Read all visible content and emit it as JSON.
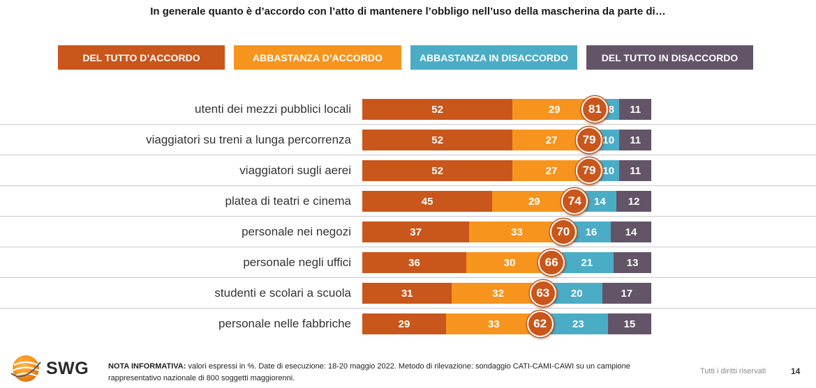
{
  "colors": {
    "del_tutto_accordo": "#c9561b",
    "abbastanza_accordo": "#f7941e",
    "abbastanza_disaccordo": "#4bacc6",
    "del_tutto_disaccordo": "#635468",
    "badge": "#c9561b"
  },
  "chart_data": {
    "type": "bar",
    "orientation": "horizontal-stacked-100",
    "title": "In generale quanto è d’accordo con l’atto di mantenere l’obbligo nell’uso della mascherina da parte di…",
    "legend_position": "top",
    "grid": false,
    "xlim": [
      0,
      100
    ],
    "categories": [
      "utenti dei mezzi pubblici locali",
      "viaggiatori su treni a lunga percorrenza",
      "viaggiatori sugli aerei",
      "platea di teatri e cinema",
      "personale nei negozi",
      "personale negli uffici",
      "studenti e scolari a scuola",
      "personale nelle fabbriche"
    ],
    "series": [
      {
        "name": "DEL TUTTO D’ACCORDO",
        "values": [
          52,
          52,
          52,
          45,
          37,
          36,
          31,
          29
        ]
      },
      {
        "name": "ABBASTANZA D’ACCORDO",
        "values": [
          29,
          27,
          27,
          29,
          33,
          30,
          32,
          33
        ]
      },
      {
        "name": "ABBASTANZA IN DISACCORDO",
        "values": [
          8,
          10,
          10,
          14,
          16,
          21,
          20,
          23
        ]
      },
      {
        "name": "DEL TUTTO IN DISACCORDO",
        "values": [
          11,
          11,
          11,
          12,
          14,
          13,
          17,
          15
        ]
      }
    ],
    "totals_accordo": [
      81,
      79,
      79,
      74,
      70,
      66,
      63,
      62
    ]
  },
  "footer": {
    "logo_text": "SWG",
    "note_label": "NOTA INFORMATIVA:",
    "note_text": " valori espressi in %. Date di esecuzione: 18-20 maggio 2022. Metodo di rilevazione: sondaggio CATI-CAMI-CAWI su un campione rappresentativo nazionale di 800 soggetti maggiorenni.",
    "rights": "Tutti i diritti riservati",
    "page_number": "14"
  }
}
